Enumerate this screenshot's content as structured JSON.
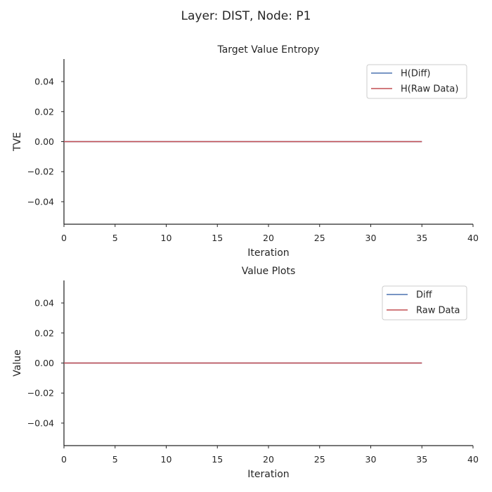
{
  "figure": {
    "suptitle": "Layer: DIST, Node: P1"
  },
  "chart_data": [
    {
      "type": "line",
      "title": "Target Value Entropy",
      "xlabel": "Iteration",
      "ylabel": "TVE",
      "xlim": [
        0,
        40
      ],
      "ylim": [
        -0.055,
        0.055
      ],
      "xticks": [
        0,
        5,
        10,
        15,
        20,
        25,
        30,
        35,
        40
      ],
      "yticks": [
        -0.04,
        -0.02,
        0.0,
        0.02,
        0.04
      ],
      "xtick_labels": [
        "0",
        "5",
        "10",
        "15",
        "20",
        "25",
        "30",
        "35",
        "40"
      ],
      "ytick_labels": [
        "−0.04",
        "−0.02",
        "0.00",
        "0.02",
        "0.04"
      ],
      "grid": false,
      "legend": "top-right",
      "series": [
        {
          "name": "H(Diff)",
          "color": "#4c72b0",
          "x": [
            0,
            35
          ],
          "y": [
            0,
            0
          ]
        },
        {
          "name": "H(Raw Data)",
          "color": "#c44e52",
          "x": [
            0,
            35
          ],
          "y": [
            0,
            0
          ]
        }
      ]
    },
    {
      "type": "line",
      "title": "Value Plots",
      "xlabel": "Iteration",
      "ylabel": "Value",
      "xlim": [
        0,
        40
      ],
      "ylim": [
        -0.055,
        0.055
      ],
      "xticks": [
        0,
        5,
        10,
        15,
        20,
        25,
        30,
        35,
        40
      ],
      "yticks": [
        -0.04,
        -0.02,
        0.0,
        0.02,
        0.04
      ],
      "xtick_labels": [
        "0",
        "5",
        "10",
        "15",
        "20",
        "25",
        "30",
        "35",
        "40"
      ],
      "ytick_labels": [
        "−0.04",
        "−0.02",
        "0.00",
        "0.02",
        "0.04"
      ],
      "grid": false,
      "legend": "top-right",
      "series": [
        {
          "name": "Diff",
          "color": "#4c72b0",
          "x": [
            0,
            35
          ],
          "y": [
            0,
            0
          ]
        },
        {
          "name": "Raw Data",
          "color": "#c44e52",
          "x": [
            0,
            35
          ],
          "y": [
            0,
            0
          ]
        }
      ]
    }
  ]
}
